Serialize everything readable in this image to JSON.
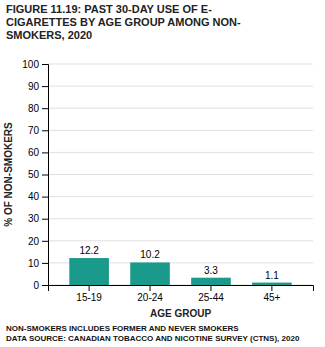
{
  "chart_data": {
    "type": "bar",
    "title": "FIGURE 11.19: PAST 30-DAY USE OF E-\nCIGARETTES BY AGE GROUP AMONG NON-\nSMOKERS, 2020",
    "xlabel": "AGE GROUP",
    "ylabel": "% OF NON-SMOKERS",
    "categories": [
      "15-19",
      "20-24",
      "25-44",
      "45+"
    ],
    "values": [
      12.2,
      10.2,
      3.3,
      1.1
    ],
    "color": "#1a9a8a",
    "ylim": [
      0,
      100
    ],
    "yticks": [
      0,
      10,
      20,
      30,
      40,
      50,
      60,
      70,
      80,
      90,
      100
    ],
    "grid": true,
    "data_labels": true,
    "footnotes": [
      "NON-SMOKERS INCLUDES FORMER AND NEVER SMOKERS",
      "DATA SOURCE: CANADIAN TOBACCO AND NICOTINE SURVEY (CTNS), 2020"
    ]
  }
}
